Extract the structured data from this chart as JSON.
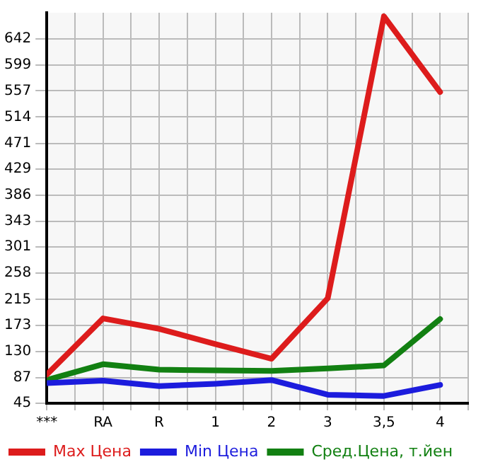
{
  "chart_data": {
    "type": "line",
    "categories": [
      "***",
      "RA",
      "R",
      "1",
      "2",
      "3",
      "3,5",
      "4"
    ],
    "series": [
      {
        "name": "Max Цена",
        "color": "#dd1c1c",
        "values": [
          92,
          184,
          167,
          142,
          118,
          217,
          679,
          555
        ]
      },
      {
        "name": "Min Цена",
        "color": "#1c1cdd",
        "values": [
          78,
          82,
          73,
          77,
          83,
          59,
          57,
          75
        ]
      },
      {
        "name": "Сред.Цена, т.йен",
        "color": "#128012",
        "values": [
          83,
          109,
          100,
          99,
          98,
          102,
          107,
          183
        ]
      }
    ],
    "ylim": [
      45,
      685
    ],
    "yticks": [
      45,
      87,
      130,
      173,
      215,
      258,
      301,
      343,
      386,
      429,
      471,
      514,
      557,
      599,
      642
    ],
    "grid": true,
    "legend": "bottom",
    "marker": "none"
  }
}
